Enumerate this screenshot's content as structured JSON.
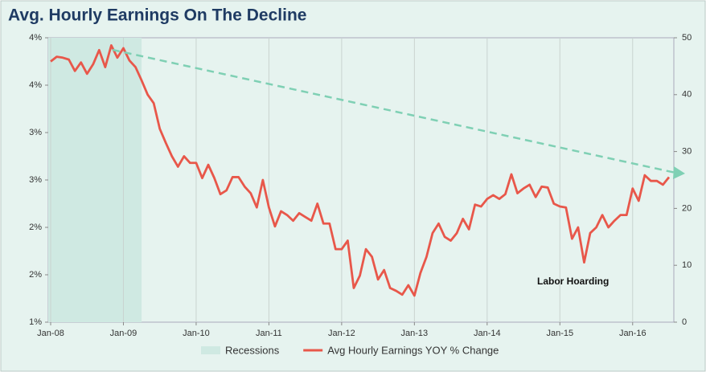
{
  "chart_data": {
    "type": "line",
    "title": "Avg. Hourly Earnings On The Decline",
    "annotation": "Labor Hoarding",
    "categories": [
      "Jan-08",
      null,
      null,
      null,
      null,
      null,
      null,
      null,
      null,
      null,
      null,
      null,
      "Jan-09",
      null,
      null,
      null,
      null,
      null,
      null,
      null,
      null,
      null,
      null,
      null,
      "Jan-10",
      null,
      null,
      null,
      null,
      null,
      null,
      null,
      null,
      null,
      null,
      null,
      "Jan-11",
      null,
      null,
      null,
      null,
      null,
      null,
      null,
      null,
      null,
      null,
      null,
      "Jan-12",
      null,
      null,
      null,
      null,
      null,
      null,
      null,
      null,
      null,
      null,
      null,
      "Jan-13",
      null,
      null,
      null,
      null,
      null,
      null,
      null,
      null,
      null,
      null,
      null,
      "Jan-14",
      null,
      null,
      null,
      null,
      null,
      null,
      null,
      null,
      null,
      null,
      null,
      "Jan-15",
      null,
      null,
      null,
      null,
      null,
      null,
      null,
      null,
      null,
      null,
      null,
      "Jan-16",
      null,
      null,
      null,
      null,
      null,
      null
    ],
    "series": [
      {
        "name": "Recessions",
        "color": "#cfe9e2",
        "axis": "y2",
        "kind": "area",
        "values": [
          50,
          50,
          50,
          50,
          50,
          50,
          50,
          50,
          50,
          50,
          50,
          50,
          50,
          50,
          50,
          50,
          null,
          null,
          null,
          null,
          null,
          null,
          null,
          null,
          null,
          null,
          null,
          null,
          null,
          null,
          null,
          null,
          null,
          null,
          null,
          null,
          null,
          null,
          null,
          null,
          null,
          null,
          null,
          null,
          null,
          null,
          null,
          null,
          null,
          null,
          null,
          null,
          null,
          null,
          null,
          null,
          null,
          null,
          null,
          null,
          null,
          null,
          null,
          null,
          null,
          null,
          null,
          null,
          null,
          null,
          null,
          null,
          null,
          null,
          null,
          null,
          null,
          null,
          null,
          null,
          null,
          null,
          null,
          null,
          null,
          null,
          null,
          null,
          null,
          null,
          null,
          null,
          null,
          null,
          null,
          null,
          null,
          null,
          null,
          null,
          null,
          null,
          null
        ]
      },
      {
        "name": "Avg Hourly Earnings YOY % Change",
        "color": "#e8574a",
        "values": [
          3.75,
          3.8,
          3.79,
          3.77,
          3.65,
          3.74,
          3.62,
          3.72,
          3.87,
          3.69,
          3.92,
          3.79,
          3.89,
          3.76,
          3.69,
          3.55,
          3.4,
          3.31,
          3.04,
          2.89,
          2.75,
          2.64,
          2.75,
          2.68,
          2.68,
          2.52,
          2.66,
          2.52,
          2.35,
          2.39,
          2.53,
          2.53,
          2.43,
          2.36,
          2.21,
          2.5,
          2.21,
          2.01,
          2.17,
          2.13,
          2.07,
          2.15,
          2.11,
          2.07,
          2.25,
          2.04,
          2.04,
          1.77,
          1.77,
          1.86,
          1.36,
          1.49,
          1.77,
          1.69,
          1.45,
          1.55,
          1.36,
          1.33,
          1.29,
          1.39,
          1.28,
          1.52,
          1.69,
          1.94,
          2.04,
          1.9,
          1.86,
          1.94,
          2.09,
          1.98,
          2.24,
          2.22,
          2.3,
          2.34,
          2.3,
          2.35,
          2.56,
          2.36,
          2.41,
          2.45,
          2.32,
          2.43,
          2.42,
          2.25,
          2.22,
          2.21,
          1.88,
          2.0,
          1.63,
          1.94,
          2.0,
          2.13,
          2.0,
          2.07,
          2.13,
          2.13,
          2.41,
          2.28,
          2.55,
          2.49,
          2.49,
          2.45,
          2.53
        ]
      }
    ],
    "ylim": [
      1,
      4
    ],
    "yticks": [
      {
        "value": 1,
        "label": "1%"
      },
      {
        "value": 1.5,
        "label": "2%"
      },
      {
        "value": 2,
        "label": "2%"
      },
      {
        "value": 2.5,
        "label": "3%"
      },
      {
        "value": 3,
        "label": "3%"
      },
      {
        "value": 3.5,
        "label": "4%"
      },
      {
        "value": 4,
        "label": "4%"
      }
    ],
    "y2lim": [
      0,
      50
    ],
    "y2ticks": [
      0,
      10,
      20,
      30,
      40,
      50
    ]
  }
}
